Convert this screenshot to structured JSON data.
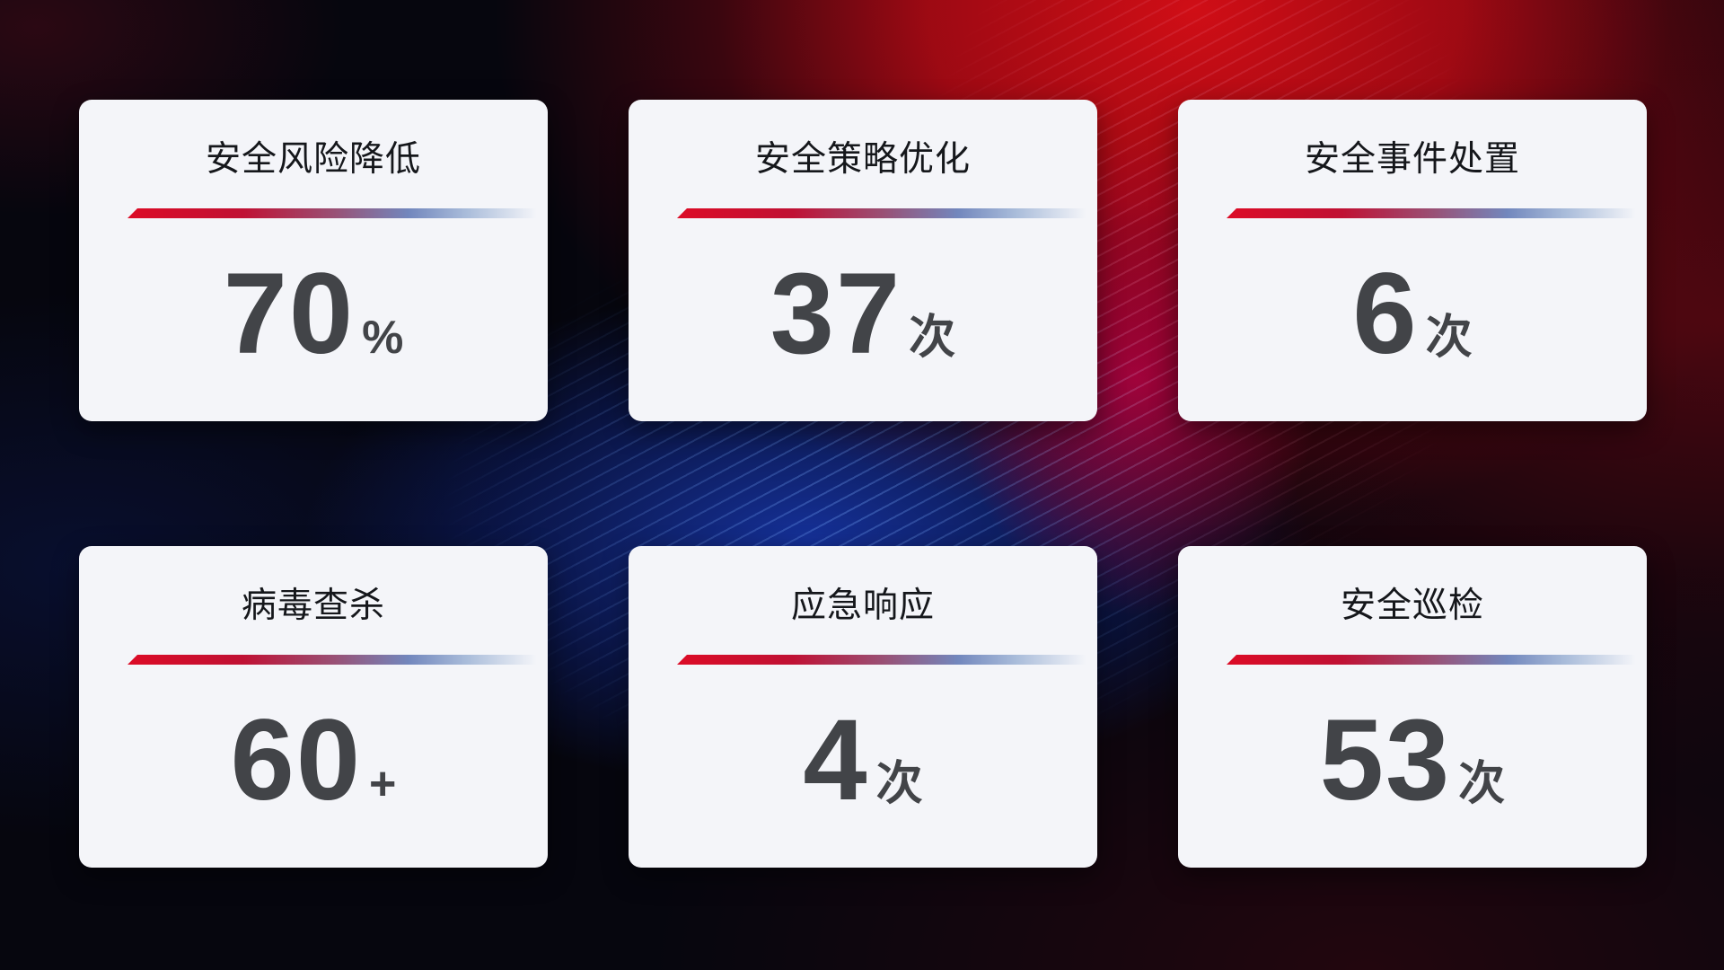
{
  "dashboard": {
    "cards": [
      {
        "title": "安全风险降低",
        "value": "70",
        "suffix": "%"
      },
      {
        "title": "安全策略优化",
        "value": "37",
        "suffix": "次"
      },
      {
        "title": "安全事件处置",
        "value": "6",
        "suffix": "次"
      },
      {
        "title": "病毒查杀",
        "value": "60",
        "suffix": "+"
      },
      {
        "title": "应急响应",
        "value": "4",
        "suffix": "次"
      },
      {
        "title": "安全巡检",
        "value": "53",
        "suffix": "次"
      }
    ]
  },
  "colors": {
    "card_bg": "#f4f5f9",
    "title_text": "#15171b",
    "value_text": "#424448",
    "accent_red": "#dc0b26",
    "accent_blue": "#7287bd",
    "bg_base": "#06060e"
  }
}
